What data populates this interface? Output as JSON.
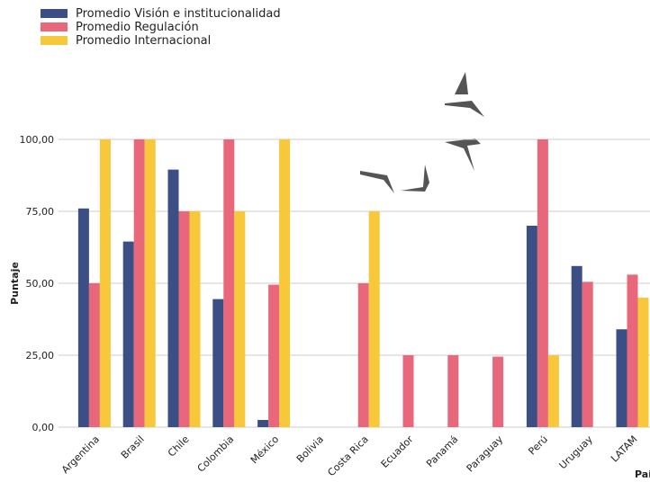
{
  "chart_data": {
    "type": "bar",
    "x_label": "Pai",
    "y_label": "Puntaje",
    "categories": [
      "Argentina",
      "Brasil",
      "Chile",
      "Colombia",
      "México",
      "Bolivia",
      "Costa Rica",
      "Ecuador",
      "Panamá",
      "Paraguay",
      "Perú",
      "Uruguay",
      "LATAM"
    ],
    "series": [
      {
        "name": "Promedio Visión e institucionalidad",
        "color": "#3b4f84",
        "values": [
          76,
          64.5,
          89.5,
          44.5,
          2.5,
          null,
          null,
          null,
          null,
          null,
          70,
          56,
          34
        ]
      },
      {
        "name": "Promedio Regulación",
        "color": "#e8677a",
        "values": [
          50,
          100,
          75,
          100,
          49.5,
          null,
          50,
          25,
          25,
          24.5,
          100,
          50.5,
          53
        ]
      },
      {
        "name": "Promedio Internacional",
        "color": "#f7c83a",
        "values": [
          100,
          100,
          75,
          75,
          100,
          null,
          75,
          null,
          null,
          null,
          25,
          null,
          45
        ]
      }
    ],
    "ylim": [
      0,
      100
    ],
    "yticks": [
      {
        "value": 0,
        "label": "0,00"
      },
      {
        "value": 25,
        "label": "25,00"
      },
      {
        "value": 50,
        "label": "50,00"
      },
      {
        "value": 75,
        "label": "75,00"
      },
      {
        "value": 100,
        "label": "100,00"
      }
    ],
    "grid": true
  }
}
